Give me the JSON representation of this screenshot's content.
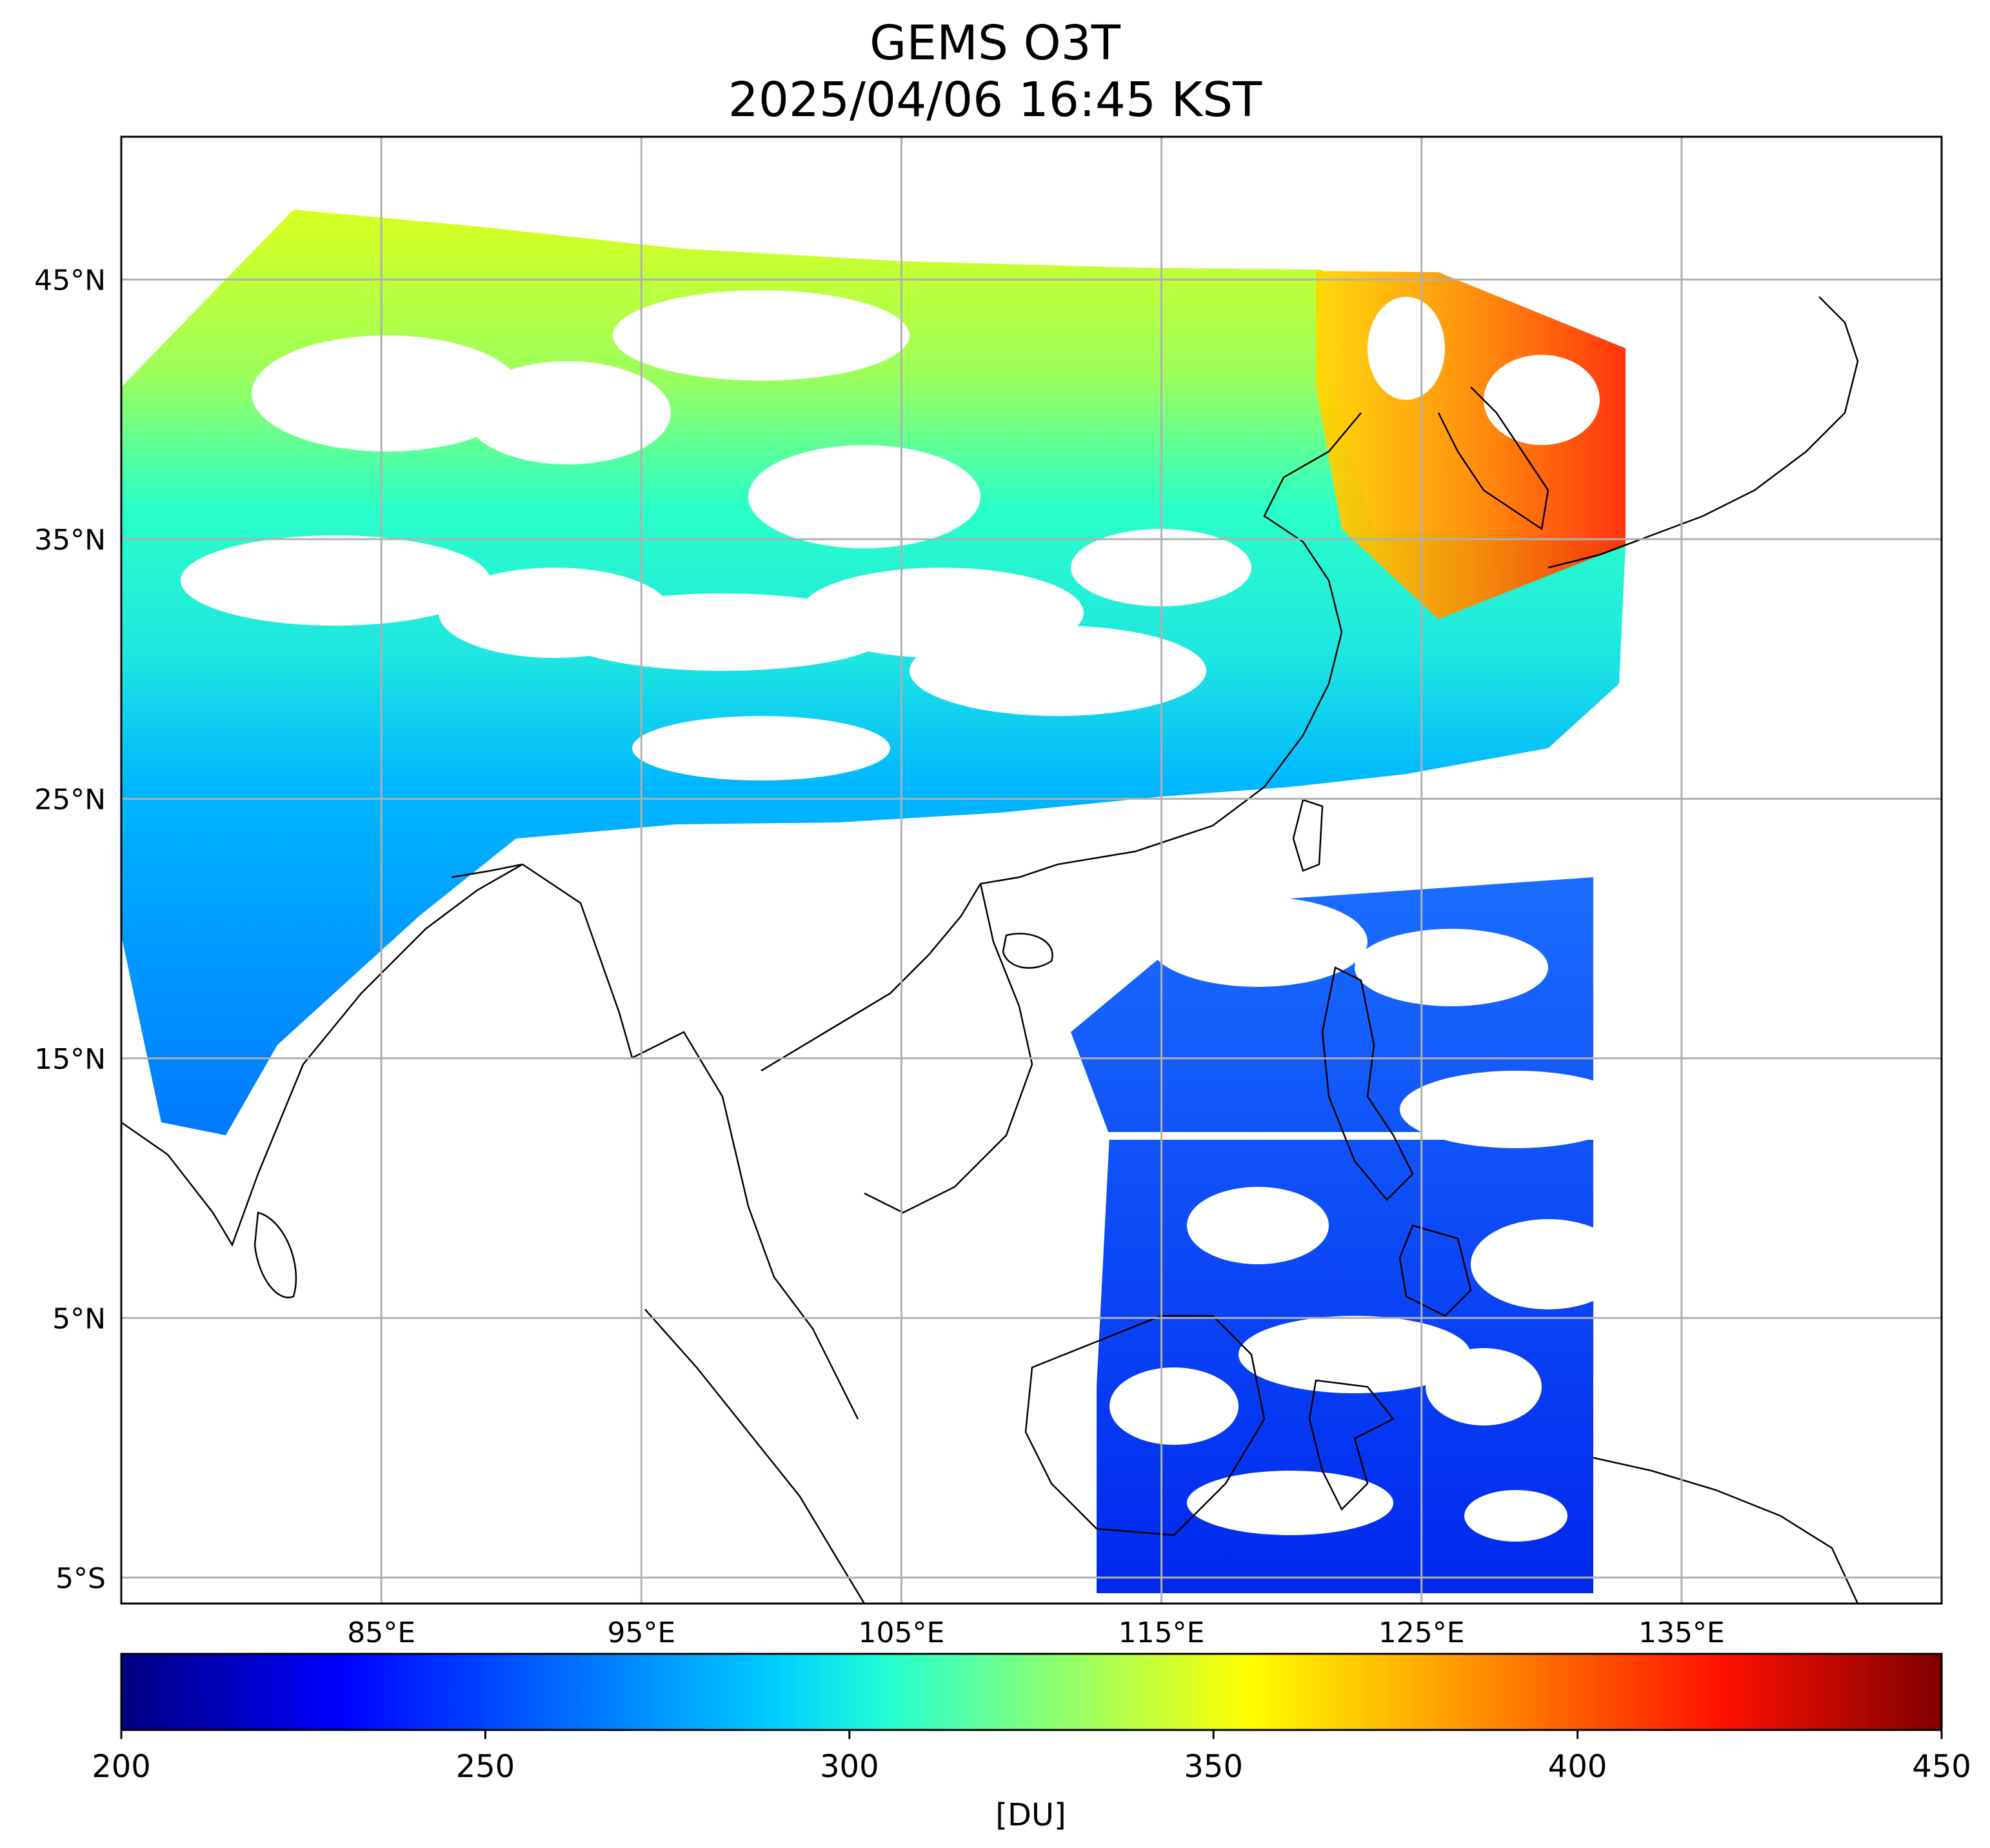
{
  "title": "GEMS O3T",
  "subtitle": "2025/04/06 16:45 KST",
  "map": {
    "lon_range": [
      75,
      145
    ],
    "lat_range": [
      -6,
      50.5
    ],
    "grid": true,
    "lat_ticks": [
      {
        "value": 45,
        "label": "45°N"
      },
      {
        "value": 35,
        "label": "35°N"
      },
      {
        "value": 25,
        "label": "25°N"
      },
      {
        "value": 15,
        "label": "15°N"
      },
      {
        "value": 5,
        "label": "5°N"
      },
      {
        "value": -5,
        "label": "5°S"
      }
    ],
    "lon_ticks": [
      {
        "value": 85,
        "label": "85°E"
      },
      {
        "value": 95,
        "label": "95°E"
      },
      {
        "value": 105,
        "label": "105°E"
      },
      {
        "value": 115,
        "label": "115°E"
      },
      {
        "value": 125,
        "label": "125°E"
      },
      {
        "value": 135,
        "label": "135°E"
      }
    ]
  },
  "colorbar": {
    "min": 200,
    "max": 450,
    "ticks": [
      "200",
      "250",
      "300",
      "350",
      "400",
      "450"
    ],
    "unit": "[DU]",
    "colormap": "jet",
    "colors": [
      "#00007f",
      "#0000ff",
      "#007fff",
      "#00ffff",
      "#7fff7f",
      "#ffff00",
      "#ff7f00",
      "#ff0000",
      "#7f0000"
    ]
  }
}
